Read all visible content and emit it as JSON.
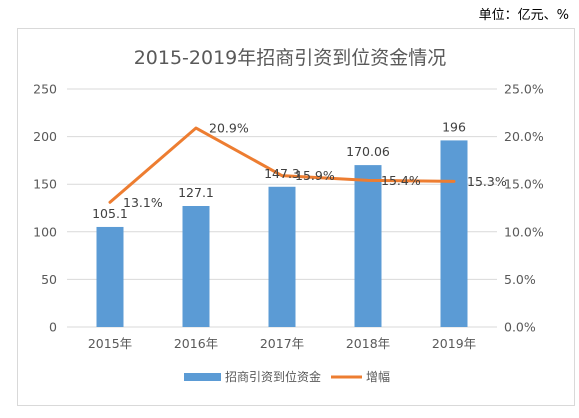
{
  "unit_note": "单位：亿元、%",
  "chart_data": {
    "type": "bar",
    "title": "2015-2019年招商引资到位资金情况",
    "categories": [
      "2015年",
      "2016年",
      "2017年",
      "2018年",
      "2019年"
    ],
    "series": [
      {
        "name": "招商引资到位资金",
        "type": "bar",
        "axis": "left",
        "values": [
          105.1,
          127.1,
          147.3,
          170.06,
          196
        ],
        "labels": [
          "105.1",
          "127.1",
          "147.3",
          "170.06",
          "196"
        ]
      },
      {
        "name": "增幅",
        "type": "line",
        "axis": "right",
        "values": [
          13.1,
          20.9,
          15.9,
          15.4,
          15.3
        ],
        "labels": [
          "13.1%",
          "20.9%",
          "15.9%",
          "15.4%",
          "15.3%"
        ]
      }
    ],
    "y_left": {
      "min": 0,
      "max": 250,
      "step": 50,
      "ticks": [
        "0",
        "50",
        "100",
        "150",
        "200",
        "250"
      ]
    },
    "y_right": {
      "min": 0,
      "max": 25,
      "step": 5,
      "ticks": [
        "0.0%",
        "5.0%",
        "10.0%",
        "15.0%",
        "20.0%",
        "25.0%"
      ]
    },
    "grid": true,
    "legend_position": "bottom",
    "colors": {
      "bar": "#5b9bd5",
      "line": "#ed7d31",
      "grid": "#d9d9d9"
    }
  }
}
